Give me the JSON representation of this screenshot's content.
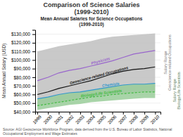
{
  "chart_data": {
    "type": "line",
    "title": "Comparison of Science Salaries\n(1999-2010)",
    "subtitle": "Mean Annual Salaries for Science Occupations\n(1999-2010)",
    "y_label": "Mean Annual Salary (USD)",
    "x": [
      1999,
      2000,
      2001,
      2002,
      2003,
      2004,
      2005,
      2006,
      2007,
      2008,
      2009,
      2010
    ],
    "series": [
      {
        "name": "Salary Range\nGeoscience-related Occupations",
        "type": "area",
        "color": "#c0c0c0",
        "lower": [
          47000,
          49000,
          51000,
          53000,
          55000,
          57000,
          58000,
          60000,
          61000,
          62000,
          63000,
          63000
        ],
        "upper": [
          110000,
          113000,
          116000,
          118000,
          120000,
          122000,
          125000,
          127000,
          128000,
          129000,
          130000,
          131000
        ]
      },
      {
        "name": "Salary Range\nBiology/Life Scientists",
        "type": "area",
        "color": "#99cc99",
        "lower": [
          42000,
          44000,
          46000,
          48000,
          49000,
          51000,
          52000,
          53000,
          54000,
          55000,
          56000,
          56000
        ],
        "upper": [
          55000,
          57000,
          60000,
          62000,
          63000,
          65000,
          67000,
          69000,
          71000,
          72000,
          72000,
          73000
        ]
      },
      {
        "name": "Physicists",
        "color": "#9966cc",
        "values": [
          76000,
          80000,
          85000,
          88000,
          90000,
          93000,
          96000,
          99000,
          103000,
          107000,
          109000,
          111000
        ]
      },
      {
        "name": "Geoscience-related Occupations",
        "color": "#111111",
        "values": [
          60000,
          63000,
          67000,
          70000,
          73000,
          76000,
          80000,
          84000,
          87000,
          89000,
          90000,
          92000
        ]
      },
      {
        "name": "Chemists",
        "color": "#3399cc",
        "values": [
          55000,
          57000,
          60000,
          62000,
          63000,
          65000,
          67000,
          69000,
          71000,
          72000,
          72000,
          73000
        ]
      },
      {
        "name": "Biology/Life Scientists",
        "color": "#44bb44",
        "line_style": "dashed",
        "values": [
          47000,
          49000,
          51000,
          53000,
          55000,
          57000,
          58000,
          60000,
          61000,
          62000,
          63000,
          63000
        ]
      }
    ],
    "xlim": [
      1998.8,
      2010.5
    ],
    "xticks": [
      1999,
      2000,
      2001,
      2002,
      2003,
      2004,
      2005,
      2006,
      2007,
      2008,
      2009,
      2010
    ],
    "ylim": [
      40000,
      135000
    ],
    "yticks": [
      {
        "value": 40000,
        "label": "$40,000"
      },
      {
        "value": 50000,
        "label": "$50,000"
      },
      {
        "value": 60000,
        "label": "$60,000"
      },
      {
        "value": 70000,
        "label": "$70,000"
      },
      {
        "value": 80000,
        "label": "$80,000"
      },
      {
        "value": 90000,
        "label": "$90,000"
      },
      {
        "value": 100000,
        "label": "$100,000"
      },
      {
        "value": 110000,
        "label": "$110,000"
      },
      {
        "value": 120000,
        "label": "$120,000"
      },
      {
        "value": 130000,
        "label": "$130,000"
      }
    ],
    "grid": true,
    "annotations": [
      "Source: AGI Geoscience Workforce Program, data derived from the U.S. Bureau of Labor Statistics, National Occupational Employment and Wage Estimates"
    ]
  }
}
